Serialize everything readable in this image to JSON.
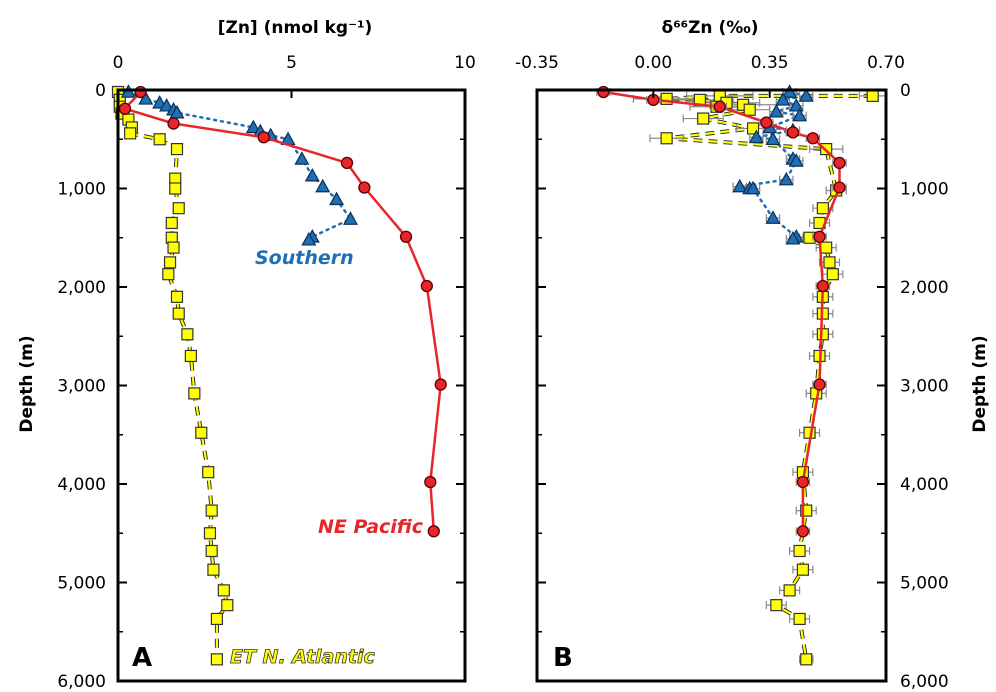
{
  "chart_data": [
    {
      "type": "scatter",
      "panel_label": "A",
      "xlabel": "[Zn] (nmol kg⁻¹)",
      "ylabel": "Depth (m)",
      "xlim": [
        0,
        10
      ],
      "ylim": [
        6000,
        0
      ],
      "x_axis_position": "top",
      "y_axis_position": "left",
      "xticks": [
        "0",
        "5",
        "10"
      ],
      "yticks": [
        "0",
        "1,000",
        "2,000",
        "3,000",
        "4,000",
        "5,000",
        "6,000"
      ],
      "grid": false,
      "series": [
        {
          "name": "NE Pacific",
          "marker": "circle",
          "line": "solid",
          "color": "#e8262a",
          "points": [
            {
              "x": 0.65,
              "y": 20
            },
            {
              "x": 0.2,
              "y": 190
            },
            {
              "x": 1.6,
              "y": 340
            },
            {
              "x": 4.2,
              "y": 480
            },
            {
              "x": 6.6,
              "y": 740
            },
            {
              "x": 7.1,
              "y": 990
            },
            {
              "x": 8.3,
              "y": 1490
            },
            {
              "x": 8.9,
              "y": 1990
            },
            {
              "x": 9.3,
              "y": 2990
            },
            {
              "x": 9.0,
              "y": 3980
            },
            {
              "x": 9.1,
              "y": 4480
            }
          ]
        },
        {
          "name": "Southern",
          "marker": "triangle",
          "line": "dotted",
          "color": "#1f6fb5",
          "points": [
            {
              "x": 0.3,
              "y": 20
            },
            {
              "x": 0.8,
              "y": 90
            },
            {
              "x": 1.2,
              "y": 130
            },
            {
              "x": 1.4,
              "y": 160
            },
            {
              "x": 1.6,
              "y": 200
            },
            {
              "x": 1.7,
              "y": 230
            },
            {
              "x": 3.9,
              "y": 380
            },
            {
              "x": 4.1,
              "y": 420
            },
            {
              "x": 4.4,
              "y": 460
            },
            {
              "x": 4.9,
              "y": 500
            },
            {
              "x": 5.3,
              "y": 700
            },
            {
              "x": 5.6,
              "y": 870
            },
            {
              "x": 5.9,
              "y": 980
            },
            {
              "x": 6.3,
              "y": 1110
            },
            {
              "x": 6.7,
              "y": 1310
            },
            {
              "x": 5.6,
              "y": 1490
            },
            {
              "x": 5.5,
              "y": 1520
            }
          ]
        },
        {
          "name": "ET N. Atlantic",
          "marker": "square",
          "line": "dashed",
          "color": "#ffff00",
          "points": [
            {
              "x": 0.0,
              "y": 20
            },
            {
              "x": 0.05,
              "y": 100
            },
            {
              "x": 0.05,
              "y": 170
            },
            {
              "x": 0.1,
              "y": 240
            },
            {
              "x": 0.3,
              "y": 300
            },
            {
              "x": 0.4,
              "y": 380
            },
            {
              "x": 0.35,
              "y": 440
            },
            {
              "x": 1.2,
              "y": 500
            },
            {
              "x": 1.7,
              "y": 600
            },
            {
              "x": 1.65,
              "y": 900
            },
            {
              "x": 1.65,
              "y": 1000
            },
            {
              "x": 1.75,
              "y": 1200
            },
            {
              "x": 1.55,
              "y": 1350
            },
            {
              "x": 1.55,
              "y": 1500
            },
            {
              "x": 1.6,
              "y": 1600
            },
            {
              "x": 1.5,
              "y": 1750
            },
            {
              "x": 1.45,
              "y": 1870
            },
            {
              "x": 1.7,
              "y": 2100
            },
            {
              "x": 1.75,
              "y": 2270
            },
            {
              "x": 2.0,
              "y": 2480
            },
            {
              "x": 2.1,
              "y": 2700
            },
            {
              "x": 2.2,
              "y": 3080
            },
            {
              "x": 2.4,
              "y": 3480
            },
            {
              "x": 2.6,
              "y": 3880
            },
            {
              "x": 2.7,
              "y": 4270
            },
            {
              "x": 2.65,
              "y": 4500
            },
            {
              "x": 2.7,
              "y": 4680
            },
            {
              "x": 2.75,
              "y": 4870
            },
            {
              "x": 3.05,
              "y": 5080
            },
            {
              "x": 3.15,
              "y": 5230
            },
            {
              "x": 2.85,
              "y": 5370
            },
            {
              "x": 2.85,
              "y": 5780
            }
          ]
        }
      ]
    },
    {
      "type": "scatter",
      "panel_label": "B",
      "xlabel": "δ⁶⁶Zn (‰)",
      "ylabel": "Depth (m)",
      "xlim": [
        -0.35,
        0.7
      ],
      "ylim": [
        6000,
        0
      ],
      "x_axis_position": "top",
      "y_axis_position": "right",
      "xticks": [
        "-0.35",
        "0.00",
        "0.35",
        "0.70"
      ],
      "yticks": [
        "0",
        "1,000",
        "2,000",
        "3,000",
        "4,000",
        "5,000",
        "6,000"
      ],
      "grid": false,
      "series": [
        {
          "name": "NE Pacific",
          "marker": "circle",
          "line": "solid",
          "color": "#e8262a",
          "points": [
            {
              "x": -0.15,
              "y": 20,
              "err": 0.02
            },
            {
              "x": 0.0,
              "y": 100,
              "err": 0.02
            },
            {
              "x": 0.2,
              "y": 170,
              "err": 0.02
            },
            {
              "x": 0.34,
              "y": 330,
              "err": 0.02
            },
            {
              "x": 0.42,
              "y": 430,
              "err": 0.02
            },
            {
              "x": 0.48,
              "y": 490,
              "err": 0.02
            },
            {
              "x": 0.56,
              "y": 740,
              "err": 0.02
            },
            {
              "x": 0.56,
              "y": 990,
              "err": 0.02
            },
            {
              "x": 0.5,
              "y": 1490,
              "err": 0.02
            },
            {
              "x": 0.51,
              "y": 1990,
              "err": 0.02
            },
            {
              "x": 0.5,
              "y": 2990,
              "err": 0.02
            },
            {
              "x": 0.45,
              "y": 3980,
              "err": 0.02
            },
            {
              "x": 0.45,
              "y": 4480,
              "err": 0.02
            }
          ]
        },
        {
          "name": "Southern",
          "marker": "triangle",
          "line": "dotted",
          "color": "#1f6fb5",
          "points": [
            {
              "x": 0.41,
              "y": 20,
              "err": 0.02
            },
            {
              "x": 0.46,
              "y": 60,
              "err": 0.02
            },
            {
              "x": 0.39,
              "y": 100,
              "err": 0.02
            },
            {
              "x": 0.43,
              "y": 160,
              "err": 0.02
            },
            {
              "x": 0.37,
              "y": 220,
              "err": 0.02
            },
            {
              "x": 0.44,
              "y": 260,
              "err": 0.02
            },
            {
              "x": 0.35,
              "y": 380,
              "err": 0.02
            },
            {
              "x": 0.42,
              "y": 410,
              "err": 0.02
            },
            {
              "x": 0.31,
              "y": 480,
              "err": 0.02
            },
            {
              "x": 0.36,
              "y": 500,
              "err": 0.02
            },
            {
              "x": 0.42,
              "y": 700,
              "err": 0.02
            },
            {
              "x": 0.43,
              "y": 720,
              "err": 0.02
            },
            {
              "x": 0.4,
              "y": 910,
              "err": 0.02
            },
            {
              "x": 0.26,
              "y": 980,
              "err": 0.02
            },
            {
              "x": 0.29,
              "y": 1000,
              "err": 0.02
            },
            {
              "x": 0.3,
              "y": 1000,
              "err": 0.02
            },
            {
              "x": 0.36,
              "y": 1300,
              "err": 0.02
            },
            {
              "x": 0.43,
              "y": 1490,
              "err": 0.02
            },
            {
              "x": 0.42,
              "y": 1510,
              "err": 0.02
            }
          ]
        },
        {
          "name": "ET N. Atlantic",
          "marker": "square",
          "line": "dashed",
          "color": "#ffff00",
          "points": [
            {
              "x": 0.66,
              "y": 60,
              "err": 0.04
            },
            {
              "x": 0.2,
              "y": 60,
              "err": 0.1
            },
            {
              "x": 0.04,
              "y": 90,
              "err": 0.1
            },
            {
              "x": 0.14,
              "y": 100,
              "err": 0.1
            },
            {
              "x": 0.22,
              "y": 130,
              "err": 0.1
            },
            {
              "x": 0.27,
              "y": 150,
              "err": 0.1
            },
            {
              "x": 0.19,
              "y": 170,
              "err": 0.08
            },
            {
              "x": 0.29,
              "y": 200,
              "err": 0.06
            },
            {
              "x": 0.15,
              "y": 290,
              "err": 0.06
            },
            {
              "x": 0.3,
              "y": 390,
              "err": 0.05
            },
            {
              "x": 0.04,
              "y": 490,
              "err": 0.05
            },
            {
              "x": 0.52,
              "y": 600,
              "err": 0.05
            },
            {
              "x": 0.55,
              "y": 1020,
              "err": 0.03
            },
            {
              "x": 0.51,
              "y": 1200,
              "err": 0.03
            },
            {
              "x": 0.5,
              "y": 1350,
              "err": 0.03
            },
            {
              "x": 0.47,
              "y": 1500,
              "err": 0.03
            },
            {
              "x": 0.52,
              "y": 1600,
              "err": 0.03
            },
            {
              "x": 0.53,
              "y": 1750,
              "err": 0.03
            },
            {
              "x": 0.54,
              "y": 1870,
              "err": 0.03
            },
            {
              "x": 0.51,
              "y": 2100,
              "err": 0.03
            },
            {
              "x": 0.51,
              "y": 2270,
              "err": 0.03
            },
            {
              "x": 0.51,
              "y": 2480,
              "err": 0.03
            },
            {
              "x": 0.5,
              "y": 2700,
              "err": 0.03
            },
            {
              "x": 0.49,
              "y": 3080,
              "err": 0.03
            },
            {
              "x": 0.47,
              "y": 3480,
              "err": 0.03
            },
            {
              "x": 0.45,
              "y": 3880,
              "err": 0.03
            },
            {
              "x": 0.46,
              "y": 4270,
              "err": 0.03
            },
            {
              "x": 0.44,
              "y": 4680,
              "err": 0.03
            },
            {
              "x": 0.45,
              "y": 4870,
              "err": 0.03
            },
            {
              "x": 0.41,
              "y": 5080,
              "err": 0.03
            },
            {
              "x": 0.37,
              "y": 5230,
              "err": 0.03
            },
            {
              "x": 0.44,
              "y": 5370,
              "err": 0.03
            },
            {
              "x": 0.46,
              "y": 5780,
              "err": 0.02
            }
          ]
        }
      ]
    }
  ]
}
